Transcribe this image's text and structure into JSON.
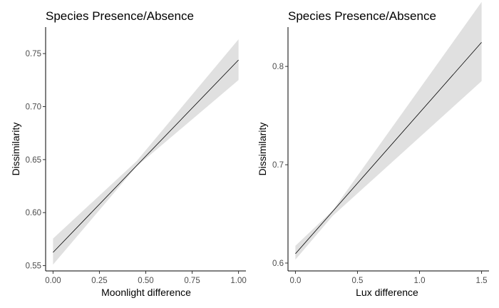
{
  "chart_data": [
    {
      "type": "line",
      "title": "Species Presence/Absence",
      "xlabel": "Moonlight difference",
      "ylabel": "Dissimilarity",
      "xlim": [
        -0.04,
        1.04
      ],
      "ylim": [
        0.545,
        0.775
      ],
      "xticks": [
        0,
        0.25,
        0.5,
        0.75,
        1
      ],
      "xtick_labels": [
        "0.00",
        "0.25",
        "0.50",
        "0.75",
        "1.00"
      ],
      "yticks": [
        0.55,
        0.6,
        0.65,
        0.7,
        0.75
      ],
      "ytick_labels": [
        "0.55",
        "0.60",
        "0.65",
        "0.70",
        "0.75"
      ],
      "grid": false,
      "band_color": "#e0e0e0",
      "line_color": "#000000",
      "fit": {
        "x": [
          0,
          1
        ],
        "y": [
          0.5625,
          0.744
        ]
      },
      "band": {
        "x": [
          0,
          0.45,
          1
        ],
        "lower": [
          0.551,
          0.6435,
          0.725
        ],
        "upper": [
          0.5755,
          0.6485,
          0.7635
        ]
      }
    },
    {
      "type": "line",
      "title": "Species Presence/Absence",
      "xlabel": "Lux difference",
      "ylabel": "Dissimilarity",
      "xlim": [
        -0.06,
        1.56
      ],
      "ylim": [
        0.592,
        0.84
      ],
      "xticks": [
        0,
        0.5,
        1,
        1.5
      ],
      "xtick_labels": [
        "0.0",
        "0.5",
        "1.0",
        "1.5"
      ],
      "yticks": [
        0.6,
        0.7,
        0.8
      ],
      "ytick_labels": [
        "0.6",
        "0.7",
        "0.8"
      ],
      "grid": false,
      "band_color": "#e0e0e0",
      "line_color": "#000000",
      "fit": {
        "x": [
          0,
          1.5
        ],
        "y": [
          0.6095,
          0.8245
        ]
      },
      "band": {
        "x": [
          0,
          0.3,
          1.5
        ],
        "lower": [
          0.6035,
          0.648,
          0.785
        ],
        "upper": [
          0.6175,
          0.6535,
          0.8655
        ]
      }
    }
  ]
}
